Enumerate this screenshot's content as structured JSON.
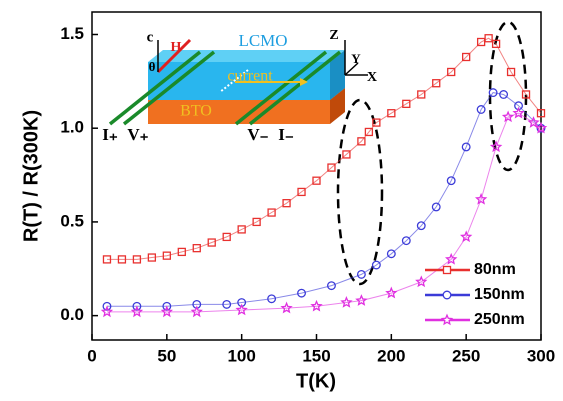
{
  "chart_data": {
    "type": "line",
    "x_label": "T(K)",
    "y_label": "R(T) / R(300K)",
    "xlim": [
      0,
      300
    ],
    "xticks": [
      0,
      50,
      100,
      150,
      200,
      250,
      300
    ],
    "ylim": [
      -0.13,
      1.62
    ],
    "yticks": [
      {
        "value": 0,
        "label": "0.0"
      },
      {
        "value": 0.5,
        "label": "0.5"
      },
      {
        "value": 1,
        "label": "1.0"
      },
      {
        "value": 1.5,
        "label": "1.5"
      }
    ],
    "legend": "lower right",
    "series": [
      {
        "name": "80nm",
        "color": "#e8302e",
        "marker": "square",
        "x": [
          10,
          20,
          30,
          40,
          50,
          60,
          70,
          80,
          90,
          100,
          110,
          120,
          130,
          140,
          150,
          160,
          170,
          180,
          185,
          190,
          200,
          210,
          220,
          230,
          240,
          250,
          260,
          265,
          270,
          280,
          290,
          300
        ],
        "values": [
          0.3,
          0.3,
          0.3,
          0.31,
          0.32,
          0.34,
          0.36,
          0.39,
          0.42,
          0.46,
          0.5,
          0.55,
          0.6,
          0.66,
          0.72,
          0.79,
          0.86,
          0.93,
          0.98,
          1.03,
          1.08,
          1.13,
          1.18,
          1.24,
          1.3,
          1.38,
          1.46,
          1.48,
          1.45,
          1.3,
          1.18,
          1.08
        ]
      },
      {
        "name": "150nm",
        "color": "#3b3bd8",
        "marker": "circle",
        "x": [
          10,
          30,
          50,
          70,
          90,
          100,
          120,
          140,
          160,
          180,
          190,
          200,
          210,
          220,
          230,
          240,
          250,
          260,
          268,
          275,
          285,
          300
        ],
        "values": [
          0.05,
          0.05,
          0.05,
          0.06,
          0.06,
          0.07,
          0.09,
          0.12,
          0.16,
          0.22,
          0.27,
          0.33,
          0.4,
          0.48,
          0.58,
          0.72,
          0.9,
          1.1,
          1.19,
          1.18,
          1.12,
          1.0
        ]
      },
      {
        "name": "250nm",
        "color": "#e030e0",
        "marker": "star",
        "x": [
          10,
          30,
          50,
          70,
          100,
          130,
          150,
          170,
          180,
          200,
          220,
          240,
          250,
          260,
          270,
          278,
          285,
          295,
          300
        ],
        "values": [
          0.02,
          0.02,
          0.02,
          0.02,
          0.03,
          0.04,
          0.05,
          0.07,
          0.08,
          0.12,
          0.18,
          0.3,
          0.42,
          0.62,
          0.9,
          1.06,
          1.08,
          1.03,
          1.0
        ]
      }
    ],
    "inset_labels": [
      "LCMO",
      "current",
      "BTO",
      "c",
      "H",
      "θ",
      "Z",
      "Y",
      "X",
      "I₊",
      "V₊",
      "V₋",
      "I₋"
    ]
  }
}
